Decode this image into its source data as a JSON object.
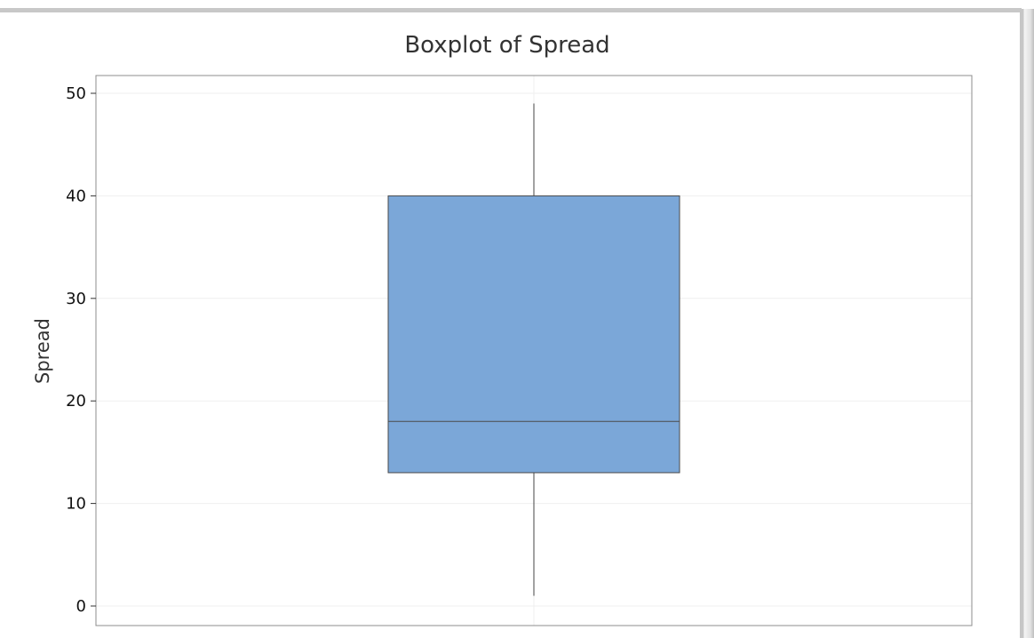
{
  "chart_data": {
    "type": "boxplot",
    "title": "Boxplot of Spread",
    "xlabel": "",
    "ylabel": "Spread",
    "ylim": [
      -2,
      52
    ],
    "yticks": [
      0,
      10,
      20,
      30,
      40,
      50
    ],
    "grid": true,
    "box": {
      "min": 1,
      "q1": 13,
      "median": 18,
      "q3": 40,
      "max": 49
    },
    "colors": {
      "box_fill": "#7ba7d8",
      "box_stroke": "#4a4a4a",
      "whisker": "#444444",
      "grid": "#efefef",
      "frame": "#8c8c8c"
    }
  }
}
